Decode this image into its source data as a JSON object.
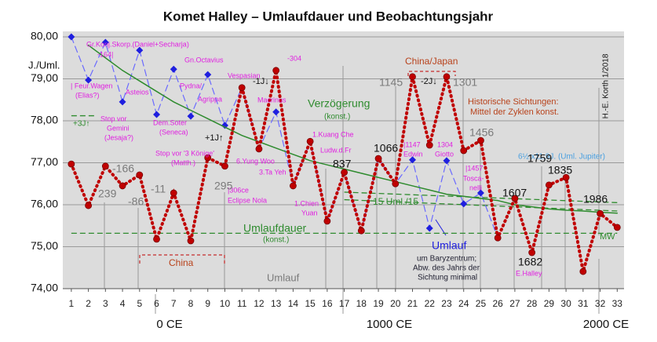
{
  "chart_data": {
    "type": "line",
    "title": "Komet Halley  –  Umlaufdauer und Beobachtungsjahr",
    "y_label": "J./Uml.",
    "x": [
      1,
      2,
      3,
      4,
      5,
      6,
      7,
      8,
      9,
      10,
      11,
      12,
      13,
      14,
      15,
      16,
      17,
      18,
      19,
      20,
      21,
      22,
      23,
      24,
      25,
      26,
      27,
      28,
      29,
      30,
      31,
      32,
      33
    ],
    "xlim": [
      0.5,
      33.4
    ],
    "xticks": [
      1,
      2,
      3,
      4,
      5,
      6,
      7,
      8,
      9,
      10,
      11,
      12,
      13,
      14,
      15,
      16,
      17,
      18,
      19,
      20,
      21,
      22,
      23,
      24,
      25,
      26,
      27,
      28,
      29,
      30,
      31,
      32,
      33
    ],
    "ylim": [
      74,
      80
    ],
    "yticks": [
      {
        "value": 74,
        "label": "74,00"
      },
      {
        "value": 75,
        "label": "75,00"
      },
      {
        "value": 76,
        "label": "76,00"
      },
      {
        "value": 77,
        "label": "77,00"
      },
      {
        "value": 78,
        "label": "78,00"
      },
      {
        "value": 79,
        "label": "79,00"
      },
      {
        "value": 80,
        "label": "80,00"
      }
    ],
    "grid": true,
    "series": [
      {
        "color": "#6a6aff",
        "marker_color": "#1f1fdf",
        "values": [
          80.0,
          78.97,
          79.87,
          78.45,
          79.68,
          78.15,
          79.23,
          78.11,
          79.1,
          77.89,
          78.79,
          77.33,
          78.21,
          76.45,
          77.51,
          75.61,
          76.77,
          75.38,
          77.1,
          76.5,
          77.07,
          75.44,
          77.05,
          76.02,
          76.28,
          75.21,
          null,
          null,
          null,
          null,
          null,
          null,
          null
        ]
      },
      {
        "color": "#2e8b2e",
        "values": [
          null,
          79.8,
          79.5,
          79.2,
          78.95,
          78.7,
          78.45,
          78.25,
          78.05,
          77.85,
          77.65,
          77.5,
          77.35,
          77.2,
          77.05,
          76.95,
          76.85,
          76.75,
          76.65,
          76.55,
          76.45,
          76.35,
          76.25,
          76.2,
          76.15,
          76.1,
          76.0,
          75.95,
          75.9,
          75.87,
          75.85,
          75.82,
          75.8
        ]
      },
      {
        "color": "#c00000",
        "values": [
          76.97,
          75.98,
          76.92,
          76.45,
          76.71,
          75.18,
          76.28,
          75.14,
          77.12,
          76.92,
          78.79,
          77.33,
          79.2,
          76.45,
          77.51,
          75.61,
          76.77,
          75.38,
          77.1,
          76.5,
          79.05,
          77.42,
          79.05,
          77.29,
          77.53,
          75.21,
          76.15,
          74.86,
          76.47,
          76.65,
          74.41,
          75.79,
          75.46
        ]
      }
    ],
    "reference_lines": [
      {
        "from": 1,
        "to": 33,
        "values": [
          75.32,
          75.32
        ]
      },
      {
        "from": 17,
        "to": 33,
        "values": [
          76.3,
          76.05
        ]
      },
      {
        "from": 17,
        "to": 33,
        "values": [
          76.12,
          75.85
        ]
      },
      {
        "from": 1,
        "to": 2.4,
        "values": [
          78.12,
          78.12
        ]
      }
    ],
    "eras": [
      "0 CE",
      "1000 CE",
      "2000 CE"
    ],
    "annotations": [
      "Gr.Konj.Skorp.(Daniel+Secharja)",
      "-164|",
      "| Feur.Wagen",
      "(Elias?)",
      "Asteios",
      "Stop vor",
      "Gemini",
      "(Jesaja?)",
      "Dem.Soter",
      "(Seneca)",
      "Pydna/",
      "Gn.Octavius",
      "Agrippa",
      "Vespasian",
      "Macrinus",
      "-304",
      "-1J↓",
      "+1J↑",
      "Stop vor '3 Könige'",
      "(Matth.)",
      "6.Yung Woo",
      "3.Ta Yeh",
      "|306ce",
      "Eclipse Nola",
      "1.Kuang Che",
      "Ludw.d.Fr",
      "1.Chien",
      "Yuan",
      "|1147",
      "Edwin",
      "1304",
      "Giotto",
      "|1457",
      "Tosca-",
      "nelli",
      "E.Halley",
      "China/Japan",
      "China",
      "Historische Sichtungen:",
      "Mittel der Zyklen konst.",
      "Verzögerung",
      "(konst.)",
      "15 Uml./15",
      "Umlaufdauer",
      "(konst.)",
      "MW",
      "+3J↑",
      "-2J↓",
      "Umlauf",
      "um Baryzentrum;",
      "Abw. des Jahrs der",
      "Sichtung minimal",
      "6½ x11,9J. (Uml. Jupiter)",
      "Umlauf",
      "H.-E. Korth 1/2018",
      "-166",
      "239",
      "-86",
      "-11",
      "295",
      "837",
      "1066",
      "1145",
      "1301",
      "1456",
      "1607",
      "1682",
      "1759",
      "1835",
      "1986"
    ]
  }
}
